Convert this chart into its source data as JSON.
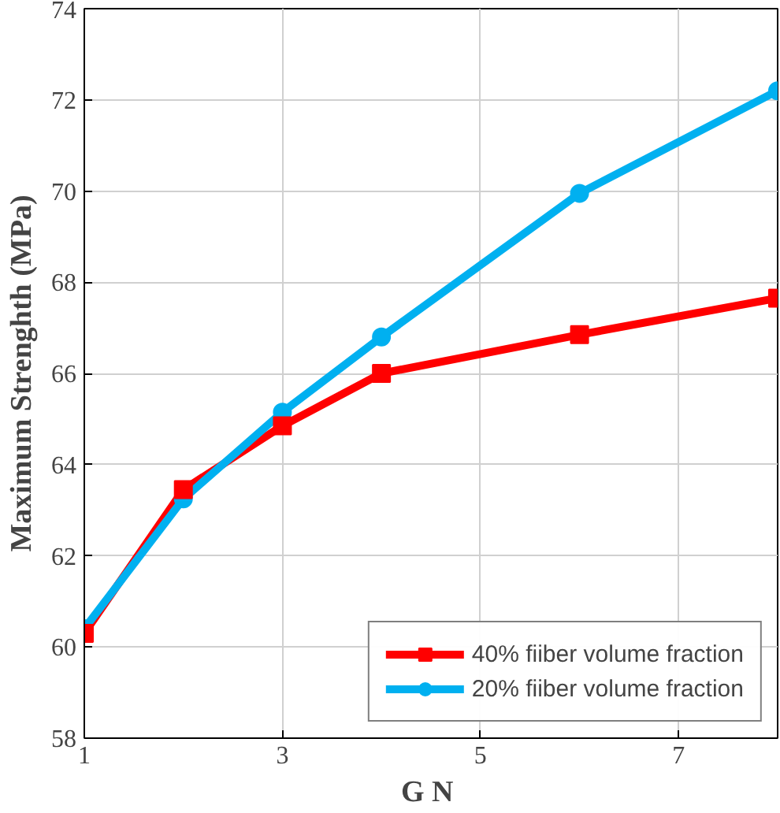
{
  "chart_data": {
    "type": "line",
    "xlabel": "G  N",
    "ylabel": "Maximum Strenghth (MPa)",
    "xlim": [
      1,
      8
    ],
    "xticks": [
      1,
      3,
      5,
      7
    ],
    "ylim": [
      58,
      74
    ],
    "yticks": [
      58,
      60,
      62,
      64,
      66,
      68,
      70,
      72,
      74
    ],
    "grid": true,
    "legend": "bottom right",
    "line_style": "solid",
    "x": [
      1,
      2,
      3,
      4,
      6,
      8
    ],
    "series": [
      {
        "name": "40% fiiber volume fraction",
        "color": "#ff0000",
        "marker": "square",
        "values": [
          60.3,
          63.45,
          64.85,
          66.0,
          66.85,
          67.65
        ]
      },
      {
        "name": "20% fiiber volume fraction",
        "color": "#00b0f0",
        "marker": "circle",
        "values": [
          60.4,
          63.25,
          65.15,
          66.8,
          69.95,
          72.2
        ]
      }
    ]
  }
}
